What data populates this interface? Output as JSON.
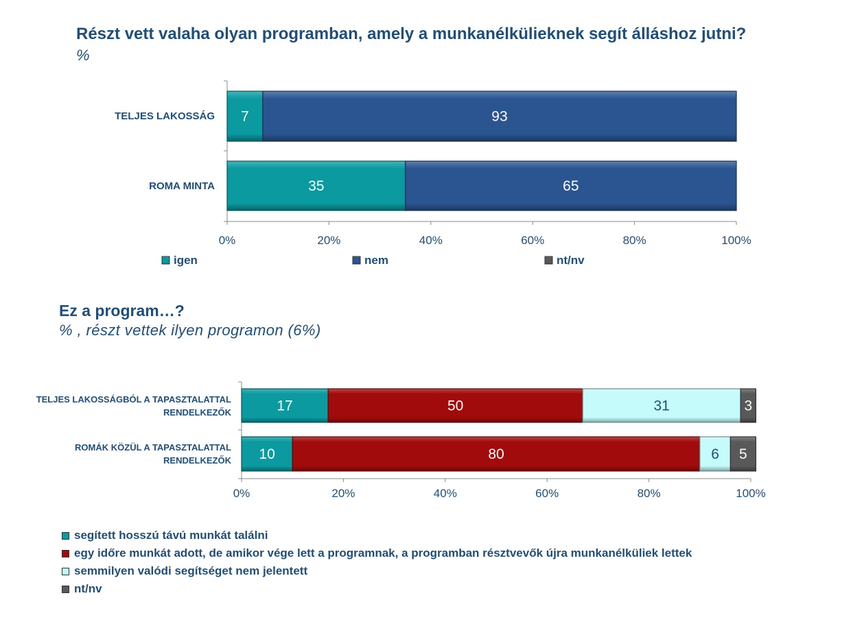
{
  "charts": {
    "c1": {
      "title": "Részt vett valaha olyan programban, amely a munkanélkülieknek segít álláshoz jutni?",
      "subtitle": "%"
    },
    "c2": {
      "title": "Ez a program…?",
      "subtitle": "% , részt vettek ilyen programon (6%)"
    }
  },
  "colors": {
    "teal": "#0b9aa0",
    "navy": "#2b5591",
    "darkred": "#a10b0b",
    "lightcyan": "#c5fbfb",
    "gray": "#595959",
    "text": "#1f4e79"
  },
  "chart_data": [
    {
      "type": "bar",
      "orientation": "horizontal-stacked-100",
      "title": "Részt vett valaha olyan programban, amely a munkanélkülieknek segít álláshoz jutni?",
      "subtitle": "%",
      "categories": [
        "TELJES LAKOSSÁG",
        "ROMA MINTA"
      ],
      "series": [
        {
          "name": "igen",
          "values": [
            7,
            35
          ],
          "color": "#0b9aa0"
        },
        {
          "name": "nem",
          "values": [
            93,
            65
          ],
          "color": "#2b5591"
        },
        {
          "name": "nt/nv",
          "values": [
            0,
            0
          ],
          "color": "#595959"
        }
      ],
      "xticks": [
        "0%",
        "20%",
        "40%",
        "60%",
        "80%",
        "100%"
      ],
      "xlim": [
        0,
        100
      ],
      "legend": "bottom"
    },
    {
      "type": "bar",
      "orientation": "horizontal-stacked-100",
      "title": "Ez a program…?",
      "subtitle": "% , részt vettek ilyen programon (6%)",
      "categories": [
        "TELJES LAKOSSÁGBÓL A TAPASZTALATTAL RENDELKEZŐK",
        "ROMÁK KÖZÜL A TAPASZTALATTAL RENDELKEZŐK"
      ],
      "category_lines": [
        [
          "TELJES LAKOSSÁGBÓL A TAPASZTALATTAL",
          "RENDELKEZŐK"
        ],
        [
          "ROMÁK KÖZÜL A TAPASZTALATTAL",
          "RENDELKEZŐK"
        ]
      ],
      "series": [
        {
          "name": "segített hosszú távú munkát találni",
          "values": [
            17,
            10
          ],
          "color": "#0b9aa0"
        },
        {
          "name": "egy időre munkát adott, de amikor vége lett a programnak, a programban résztvevők újra munkanélküliek lettek",
          "values": [
            50,
            80
          ],
          "color": "#a10b0b"
        },
        {
          "name": "semmilyen valódi segítséget nem jelentett",
          "values": [
            31,
            6
          ],
          "color": "#c5fbfb"
        },
        {
          "name": "nt/nv",
          "values": [
            3,
            5
          ],
          "color": "#595959"
        }
      ],
      "xticks": [
        "0%",
        "20%",
        "40%",
        "60%",
        "80%",
        "100%"
      ],
      "xlim": [
        0,
        100
      ],
      "legend": "bottom"
    }
  ]
}
